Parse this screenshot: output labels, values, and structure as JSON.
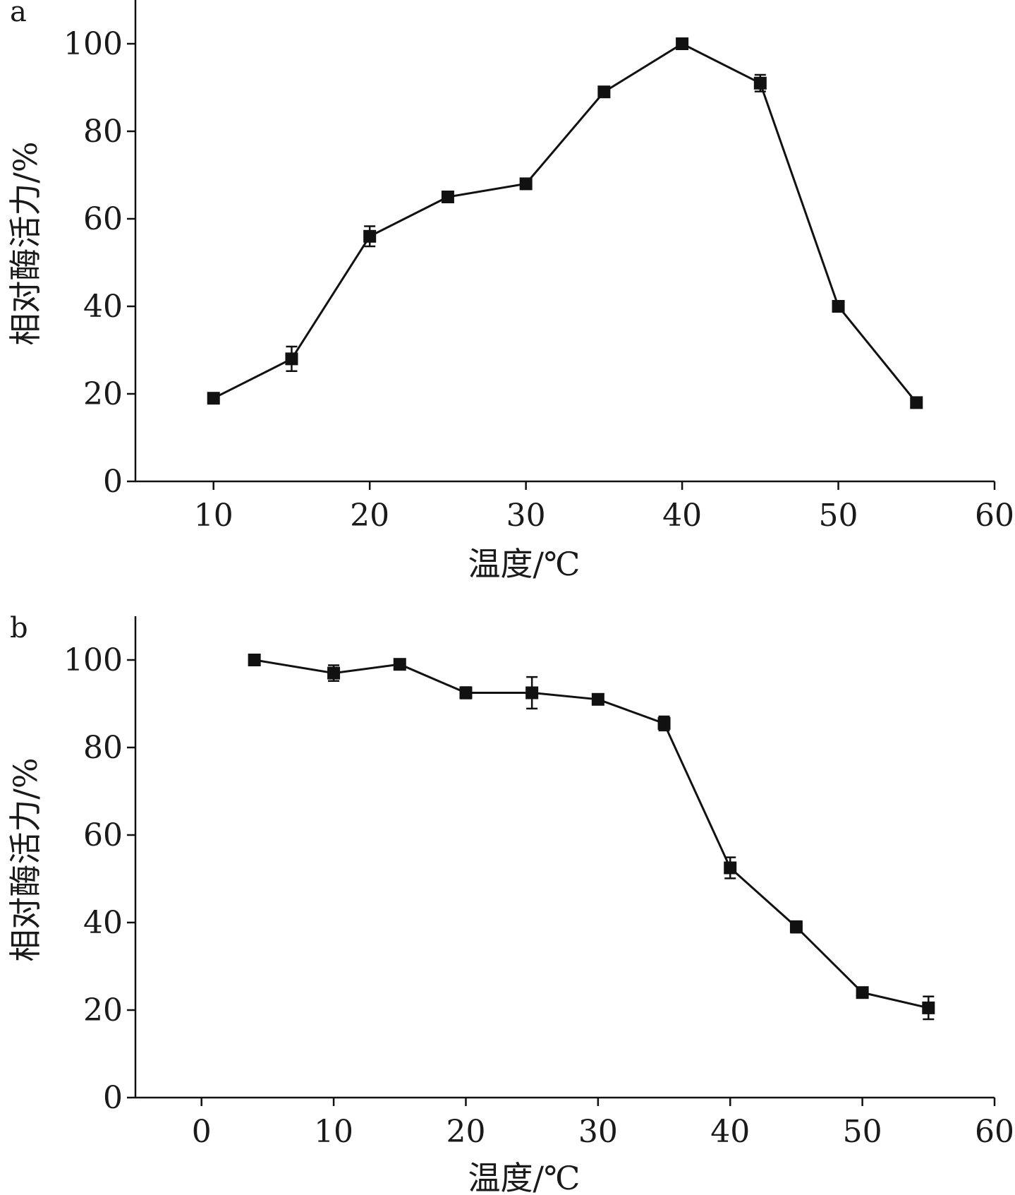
{
  "chart_data": [
    {
      "type": "line",
      "panel_label": "a",
      "xlabel": "温度/℃",
      "ylabel": "相对酶活力/%",
      "xlim": [
        5,
        60
      ],
      "ylim": [
        0,
        110
      ],
      "xticks": [
        10,
        20,
        30,
        40,
        50,
        60
      ],
      "yticks": [
        0,
        20,
        40,
        60,
        80,
        100
      ],
      "grid": false,
      "series": [
        {
          "marker": "square",
          "color": "#111111",
          "x": [
            10,
            15,
            20,
            25,
            30,
            35,
            40,
            45,
            50,
            55
          ],
          "y": [
            19,
            28,
            56,
            65,
            68,
            89,
            100,
            91,
            40,
            18
          ],
          "error": [
            0.8,
            2.8,
            2.3,
            0.8,
            1.2,
            0.6,
            0.5,
            1.9,
            0.6,
            0.5
          ]
        }
      ]
    },
    {
      "type": "line",
      "panel_label": "b",
      "xlabel": "温度/℃",
      "ylabel": "相对酶活力/%",
      "xlim": [
        -5,
        60
      ],
      "ylim": [
        0,
        110
      ],
      "xticks": [
        0,
        10,
        20,
        30,
        40,
        50,
        60
      ],
      "yticks": [
        0,
        20,
        40,
        60,
        80,
        100
      ],
      "grid": false,
      "series": [
        {
          "marker": "square",
          "color": "#111111",
          "x": [
            4,
            10,
            15,
            20,
            25,
            30,
            35,
            40,
            45,
            50,
            55
          ],
          "y": [
            100,
            97,
            99,
            92.5,
            92.5,
            91,
            85.5,
            52.5,
            39,
            24,
            20.5
          ],
          "error": [
            0.8,
            1.8,
            1.1,
            1.3,
            3.6,
            0.8,
            1.6,
            2.4,
            1.3,
            1.2,
            2.6
          ]
        }
      ]
    }
  ]
}
